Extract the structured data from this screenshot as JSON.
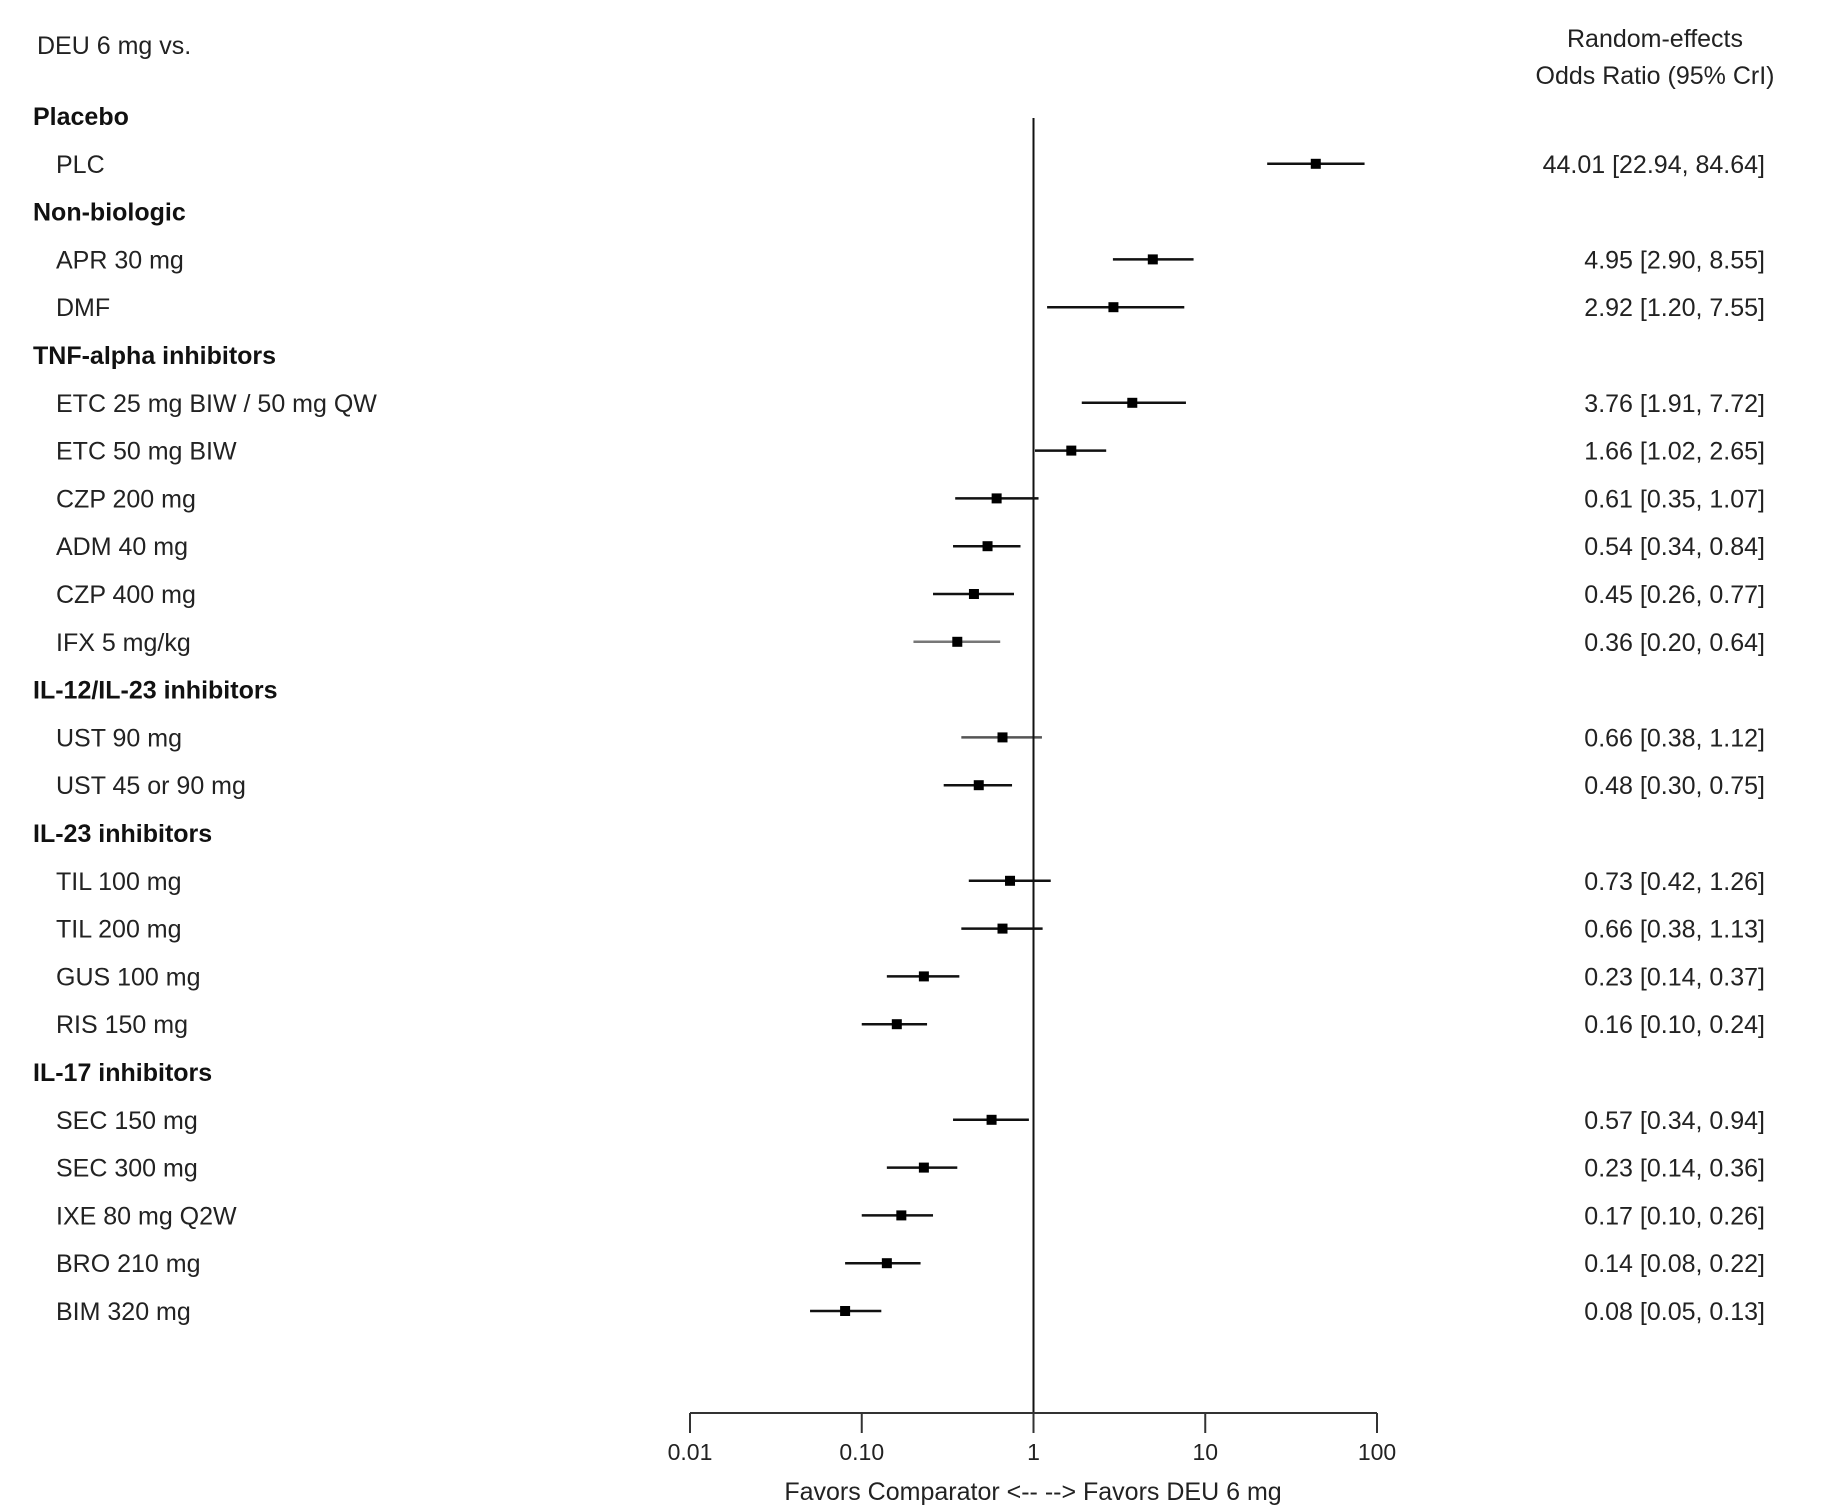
{
  "chart_data": {
    "type": "forest",
    "title_left": "DEU 6 mg vs.",
    "title_right_line1": "Random-effects",
    "title_right_line2": "Odds Ratio (95% CrI)",
    "xlabel": "Favors Comparator <-- --> Favors DEU 6 mg",
    "x_scale": "log",
    "xlim": [
      0.01,
      100
    ],
    "x_ticks": [
      0.01,
      0.1,
      1,
      10,
      100
    ],
    "x_tick_labels": [
      "0.01",
      "0.10",
      "1",
      "10",
      "100"
    ],
    "reference_line": 1,
    "line_color": "#111111",
    "rows": [
      {
        "group": "Placebo"
      },
      {
        "label": "PLC",
        "or": 44.01,
        "lo": 22.94,
        "hi": 84.64,
        "text": "44.01 [22.94, 84.64]"
      },
      {
        "group": "Non-biologic"
      },
      {
        "label": "APR 30 mg",
        "or": 4.95,
        "lo": 2.9,
        "hi": 8.55,
        "text": "4.95 [2.90,  8.55]"
      },
      {
        "label": "DMF",
        "or": 2.92,
        "lo": 1.2,
        "hi": 7.55,
        "text": "2.92 [1.20,  7.55]"
      },
      {
        "group": "TNF-alpha inhibitors"
      },
      {
        "label": "ETC 25 mg BIW / 50 mg QW",
        "or": 3.76,
        "lo": 1.91,
        "hi": 7.72,
        "text": "3.76 [1.91,  7.72]"
      },
      {
        "label": "ETC 50 mg BIW",
        "or": 1.66,
        "lo": 1.02,
        "hi": 2.65,
        "text": "1.66 [1.02,  2.65]"
      },
      {
        "label": "CZP 200 mg",
        "or": 0.61,
        "lo": 0.35,
        "hi": 1.07,
        "text": "0.61 [0.35,  1.07]"
      },
      {
        "label": "ADM 40 mg",
        "or": 0.54,
        "lo": 0.34,
        "hi": 0.84,
        "text": "0.54 [0.34,  0.84]"
      },
      {
        "label": "CZP 400 mg",
        "or": 0.45,
        "lo": 0.26,
        "hi": 0.77,
        "text": "0.45 [0.26,  0.77]"
      },
      {
        "label": "IFX 5 mg/kg",
        "or": 0.36,
        "lo": 0.2,
        "hi": 0.64,
        "text": "0.36 [0.20,  0.64]",
        "color": "#777777"
      },
      {
        "group": "IL-12/IL-23 inhibitors"
      },
      {
        "label": "UST 90 mg",
        "or": 0.66,
        "lo": 0.38,
        "hi": 1.12,
        "text": "0.66 [0.38,  1.12]",
        "color": "#555555"
      },
      {
        "label": "UST 45 or 90 mg",
        "or": 0.48,
        "lo": 0.3,
        "hi": 0.75,
        "text": "0.48 [0.30,  0.75]"
      },
      {
        "group": "IL-23 inhibitors"
      },
      {
        "label": "TIL 100 mg",
        "or": 0.73,
        "lo": 0.42,
        "hi": 1.26,
        "text": "0.73 [0.42,  1.26]"
      },
      {
        "label": "TIL 200 mg",
        "or": 0.66,
        "lo": 0.38,
        "hi": 1.13,
        "text": "0.66 [0.38,  1.13]"
      },
      {
        "label": "GUS 100 mg",
        "or": 0.23,
        "lo": 0.14,
        "hi": 0.37,
        "text": "0.23 [0.14,  0.37]"
      },
      {
        "label": "RIS 150 mg",
        "or": 0.16,
        "lo": 0.1,
        "hi": 0.24,
        "text": "0.16 [0.10,  0.24]"
      },
      {
        "group": "IL-17 inhibitors"
      },
      {
        "label": "SEC 150 mg",
        "or": 0.57,
        "lo": 0.34,
        "hi": 0.94,
        "text": "0.57 [0.34,  0.94]"
      },
      {
        "label": "SEC 300 mg",
        "or": 0.23,
        "lo": 0.14,
        "hi": 0.36,
        "text": "0.23 [0.14,  0.36]"
      },
      {
        "label": "IXE 80 mg Q2W",
        "or": 0.17,
        "lo": 0.1,
        "hi": 0.26,
        "text": "0.17 [0.10,  0.26]"
      },
      {
        "label": "BRO 210 mg",
        "or": 0.14,
        "lo": 0.08,
        "hi": 0.22,
        "text": "0.14 [0.08,  0.22]"
      },
      {
        "label": "BIM 320 mg",
        "or": 0.08,
        "lo": 0.05,
        "hi": 0.13,
        "text": "0.08 [0.05,  0.13]"
      }
    ]
  }
}
